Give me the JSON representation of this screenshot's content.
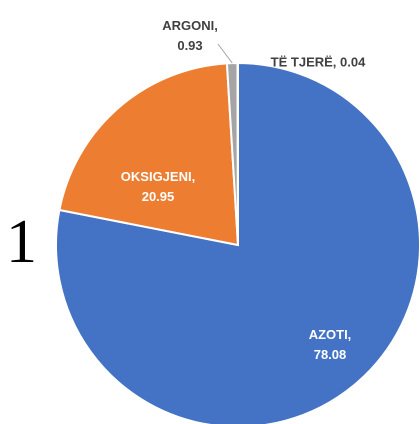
{
  "figure_label": "1",
  "chart_data": {
    "type": "pie",
    "values": [
      78.08,
      20.95,
      0.93,
      0.04
    ],
    "value_labels": [
      "AZOTI, 78.08",
      "OKSIGJENI, 20.95",
      "ARGONI, 0.93",
      "TË TJERË, 0.04"
    ],
    "colors": [
      "#4472c4",
      "#ed7d31",
      "#a5a5a5",
      "#ffc000"
    ]
  }
}
